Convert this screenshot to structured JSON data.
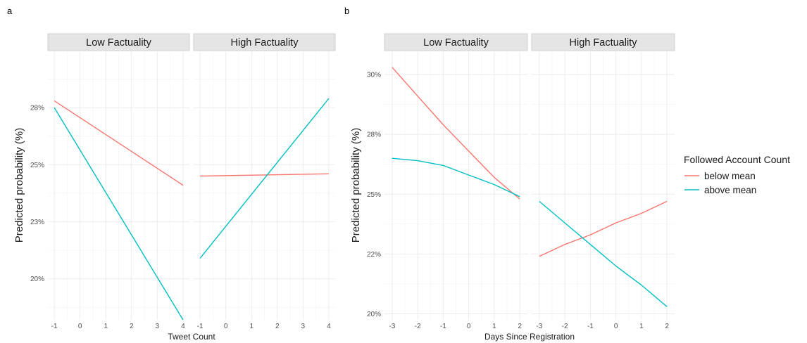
{
  "colors": {
    "below": "#F8766D",
    "above": "#00BFC4",
    "strip_bg": "#E5E5E5",
    "grid": "#EBEBEB"
  },
  "legend": {
    "title": "Followed Account Count",
    "entries": [
      {
        "key": "below",
        "label": "below mean"
      },
      {
        "key": "above",
        "label": "above mean"
      }
    ]
  },
  "chart_data": [
    {
      "type": "line",
      "panel_label": "a",
      "xlabel": "Tweet Count",
      "ylabel": "Predicted probability (%)",
      "xlim": [
        -1.25,
        4.25
      ],
      "ylim": [
        18.2,
        30.0
      ],
      "x_ticks": [
        -1,
        0,
        1,
        2,
        3,
        4
      ],
      "x_tick_labels": [
        "-1",
        "0",
        "1",
        "2",
        "3",
        "4"
      ],
      "y_ticks": [
        20.0,
        22.5,
        25.0,
        27.5
      ],
      "y_tick_labels": [
        "20%",
        "23%",
        "25%",
        "28%"
      ],
      "grid": true,
      "facets": [
        {
          "title": "Low Factuality",
          "series": [
            {
              "name": "below mean",
              "x": [
                -1,
                4
              ],
              "y": [
                27.8,
                24.1
              ]
            },
            {
              "name": "above mean",
              "x": [
                -1,
                4
              ],
              "y": [
                27.5,
                18.2
              ]
            }
          ]
        },
        {
          "title": "High Factuality",
          "series": [
            {
              "name": "below mean",
              "x": [
                -1,
                4
              ],
              "y": [
                24.5,
                24.6
              ]
            },
            {
              "name": "above mean",
              "x": [
                -1,
                4
              ],
              "y": [
                20.9,
                27.9
              ]
            }
          ]
        }
      ]
    },
    {
      "type": "line",
      "panel_label": "b",
      "xlabel": "Days Since Registration",
      "ylabel": "Predicted probability (%)",
      "xlim": [
        -3.3,
        2.3
      ],
      "ylim": [
        19.75,
        31.0
      ],
      "x_ticks": [
        -3,
        -2,
        -1,
        0,
        1,
        2
      ],
      "x_tick_labels": [
        "-3",
        "-2",
        "-1",
        "0",
        "1",
        "2"
      ],
      "y_ticks": [
        20.0,
        22.5,
        25.0,
        27.5,
        30.0
      ],
      "y_tick_labels": [
        "20%",
        "22%",
        "25%",
        "28%",
        "30%"
      ],
      "grid": true,
      "facets": [
        {
          "title": "Low Factuality",
          "series": [
            {
              "name": "below mean",
              "x": [
                -3,
                -2,
                -1,
                0,
                1,
                2
              ],
              "y": [
                30.3,
                29.1,
                27.9,
                26.8,
                25.7,
                24.8
              ]
            },
            {
              "name": "above mean",
              "x": [
                -3,
                -2,
                -1,
                0,
                1,
                2
              ],
              "y": [
                26.5,
                26.4,
                26.2,
                25.8,
                25.4,
                24.9
              ]
            }
          ]
        },
        {
          "title": "High Factuality",
          "series": [
            {
              "name": "below mean",
              "x": [
                -3,
                -2,
                -1,
                0,
                1,
                2
              ],
              "y": [
                22.4,
                22.9,
                23.3,
                23.8,
                24.2,
                24.7
              ]
            },
            {
              "name": "above mean",
              "x": [
                -3,
                -2,
                -1,
                0,
                1,
                2
              ],
              "y": [
                24.7,
                23.8,
                22.9,
                22.0,
                21.2,
                20.3
              ]
            }
          ]
        }
      ]
    }
  ]
}
